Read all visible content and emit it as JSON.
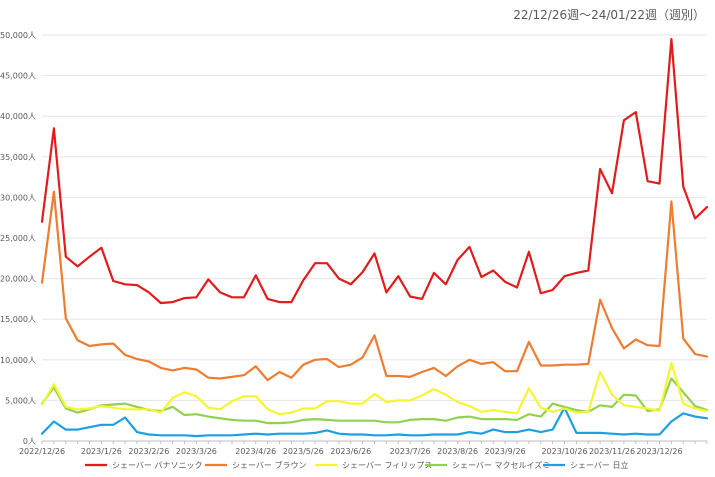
{
  "chart_data": {
    "type": "line",
    "title": "22/12/26週～24/01/22週（週別）",
    "xlabel": "",
    "ylabel": "",
    "ylim": [
      0,
      50000
    ],
    "y_ticks": [
      0,
      5000,
      10000,
      15000,
      20000,
      25000,
      30000,
      35000,
      40000,
      45000,
      50000
    ],
    "y_tick_labels": [
      "0人",
      "5,000人",
      "10,000人",
      "15,000人",
      "20,000人",
      "25,000人",
      "30,000人",
      "35,000人",
      "40,000人",
      "45,000人",
      "50,000人"
    ],
    "x_tick_labels": [
      {
        "index": 0,
        "label": "2022/12/26"
      },
      {
        "index": 5,
        "label": "2023/1/26"
      },
      {
        "index": 9,
        "label": "2023/2/26"
      },
      {
        "index": 13,
        "label": "2023/3/26"
      },
      {
        "index": 18,
        "label": "2023/4/26"
      },
      {
        "index": 22,
        "label": "2023/5/26"
      },
      {
        "index": 26,
        "label": "2023/6/26"
      },
      {
        "index": 31,
        "label": "2023/7/26"
      },
      {
        "index": 35,
        "label": "2023/8/26"
      },
      {
        "index": 39,
        "label": "2023/9/26"
      },
      {
        "index": 44,
        "label": "2023/10/26"
      },
      {
        "index": 48,
        "label": "2023/11/26"
      },
      {
        "index": 52,
        "label": "2023/12/26"
      }
    ],
    "n_points": 57,
    "series": [
      {
        "name": "シェーバー パナソニック",
        "color": "#e01c1c",
        "values": [
          27000,
          38500,
          22700,
          21500,
          22700,
          23800,
          19700,
          19300,
          19200,
          18300,
          17000,
          17100,
          17600,
          17700,
          19900,
          18300,
          17700,
          17700,
          20400,
          17500,
          17100,
          17100,
          19800,
          21900,
          21900,
          20000,
          19300,
          20800,
          23100,
          18300,
          20300,
          17800,
          17500,
          20700,
          19300,
          22300,
          23900,
          20200,
          21000,
          19600,
          18900,
          23300,
          18200,
          18600,
          20300,
          20700,
          21000,
          33500,
          30500,
          39500,
          40500,
          32000,
          31700,
          49500,
          31300,
          27400,
          28800
        ]
      },
      {
        "name": "シェーバー ブラウン",
        "color": "#ed7d31",
        "values": [
          19500,
          30700,
          15100,
          12400,
          11700,
          11900,
          12000,
          10600,
          10100,
          9800,
          9000,
          8700,
          9000,
          8800,
          7800,
          7700,
          7900,
          8100,
          9200,
          7500,
          8500,
          7800,
          9400,
          10000,
          10100,
          9100,
          9400,
          10300,
          13000,
          8000,
          8000,
          7900,
          8500,
          9000,
          8000,
          9200,
          10000,
          9500,
          9700,
          8600,
          8600,
          12200,
          9300,
          9300,
          9400,
          9400,
          9500,
          17400,
          13900,
          11400,
          12500,
          11800,
          11700,
          29500,
          12600,
          10700,
          10400
        ]
      },
      {
        "name": "シェーバー フィリップス",
        "color": "#f5f532",
        "values": [
          4500,
          7000,
          4200,
          3900,
          4000,
          4300,
          4100,
          3900,
          3900,
          3900,
          3500,
          5300,
          6000,
          5500,
          4100,
          3900,
          4900,
          5500,
          5500,
          3900,
          3300,
          3500,
          4000,
          4000,
          4900,
          4900,
          4600,
          4600,
          5800,
          4800,
          5000,
          5000,
          5600,
          6400,
          5700,
          4800,
          4300,
          3600,
          3800,
          3600,
          3400,
          6500,
          4100,
          3600,
          4000,
          3500,
          3600,
          8500,
          5700,
          4400,
          4200,
          4000,
          3700,
          9600,
          4600,
          4000,
          3700
        ]
      },
      {
        "name": "シェーバー マクセルイズミ",
        "color": "#92d050",
        "values": [
          4600,
          6600,
          4000,
          3500,
          3900,
          4400,
          4500,
          4600,
          4200,
          3800,
          3700,
          4200,
          3200,
          3300,
          3000,
          2800,
          2600,
          2500,
          2500,
          2200,
          2200,
          2300,
          2600,
          2700,
          2600,
          2500,
          2500,
          2500,
          2500,
          2300,
          2300,
          2600,
          2700,
          2700,
          2500,
          2900,
          3000,
          2700,
          2700,
          2700,
          2600,
          3300,
          3000,
          4600,
          4200,
          3800,
          3600,
          4400,
          4200,
          5700,
          5600,
          3700,
          3900,
          7700,
          6000,
          4300,
          3800
        ]
      },
      {
        "name": "シェーバー 日立",
        "color": "#1ba1e2",
        "values": [
          900,
          2400,
          1400,
          1400,
          1700,
          2000,
          2000,
          2900,
          1100,
          800,
          700,
          700,
          700,
          600,
          700,
          700,
          700,
          800,
          900,
          800,
          900,
          900,
          900,
          1000,
          1300,
          900,
          800,
          800,
          700,
          700,
          800,
          700,
          700,
          800,
          800,
          800,
          1100,
          900,
          1400,
          1100,
          1100,
          1400,
          1100,
          1400,
          4100,
          1000,
          1000,
          1000,
          900,
          800,
          900,
          800,
          800,
          2400,
          3400,
          3000,
          2800
        ]
      }
    ],
    "legend_position": "bottom",
    "grid": true
  }
}
